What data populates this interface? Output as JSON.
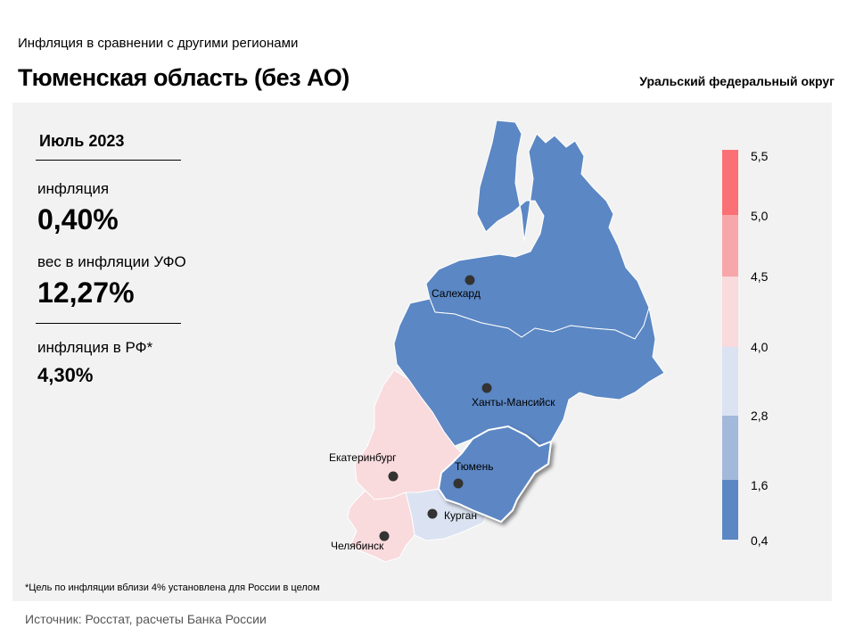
{
  "header": {
    "subtitle": "Инфляция в сравнении с другими регионами",
    "title": "Тюменская область (без АО)",
    "district": "Уральский федеральный округ"
  },
  "stats": {
    "period": "Июль 2023",
    "inflation_label": "инфляция",
    "inflation_value": "0,40%",
    "weight_label": "вес в инфляции УФО",
    "weight_value": "12,27%",
    "rf_label": "инфляция в РФ*",
    "rf_value": "4,30%"
  },
  "map": {
    "cities": {
      "salekhard": "Салехард",
      "khanty": "Ханты-Мансийск",
      "ekaterinburg": "Екатеринбург",
      "tyumen": "Тюмень",
      "kurgan": "Курган",
      "chelyabinsk": "Челябинск"
    },
    "colors": {
      "yanao": "#5b87c4",
      "khmao": "#5b87c4",
      "tyumen": "#5b87c4",
      "sverdlovsk": "#f9dadd",
      "chelyabinsk": "#f9dadd",
      "kurgan": "#dbe3f2"
    }
  },
  "legend": {
    "ticks": [
      "5,5",
      "5,0",
      "4,5",
      "4,0",
      "2,8",
      "1,6",
      "0,4"
    ],
    "colors": [
      "#f97174",
      "#f7a6aa",
      "#f9dadd",
      "#dbe3f2",
      "#a2b9dc",
      "#5b87c4"
    ]
  },
  "footnote": "*Цель по инфляции вблизи 4% установлена для России в целом",
  "source": "Источник: Росстат, расчеты Банка России"
}
